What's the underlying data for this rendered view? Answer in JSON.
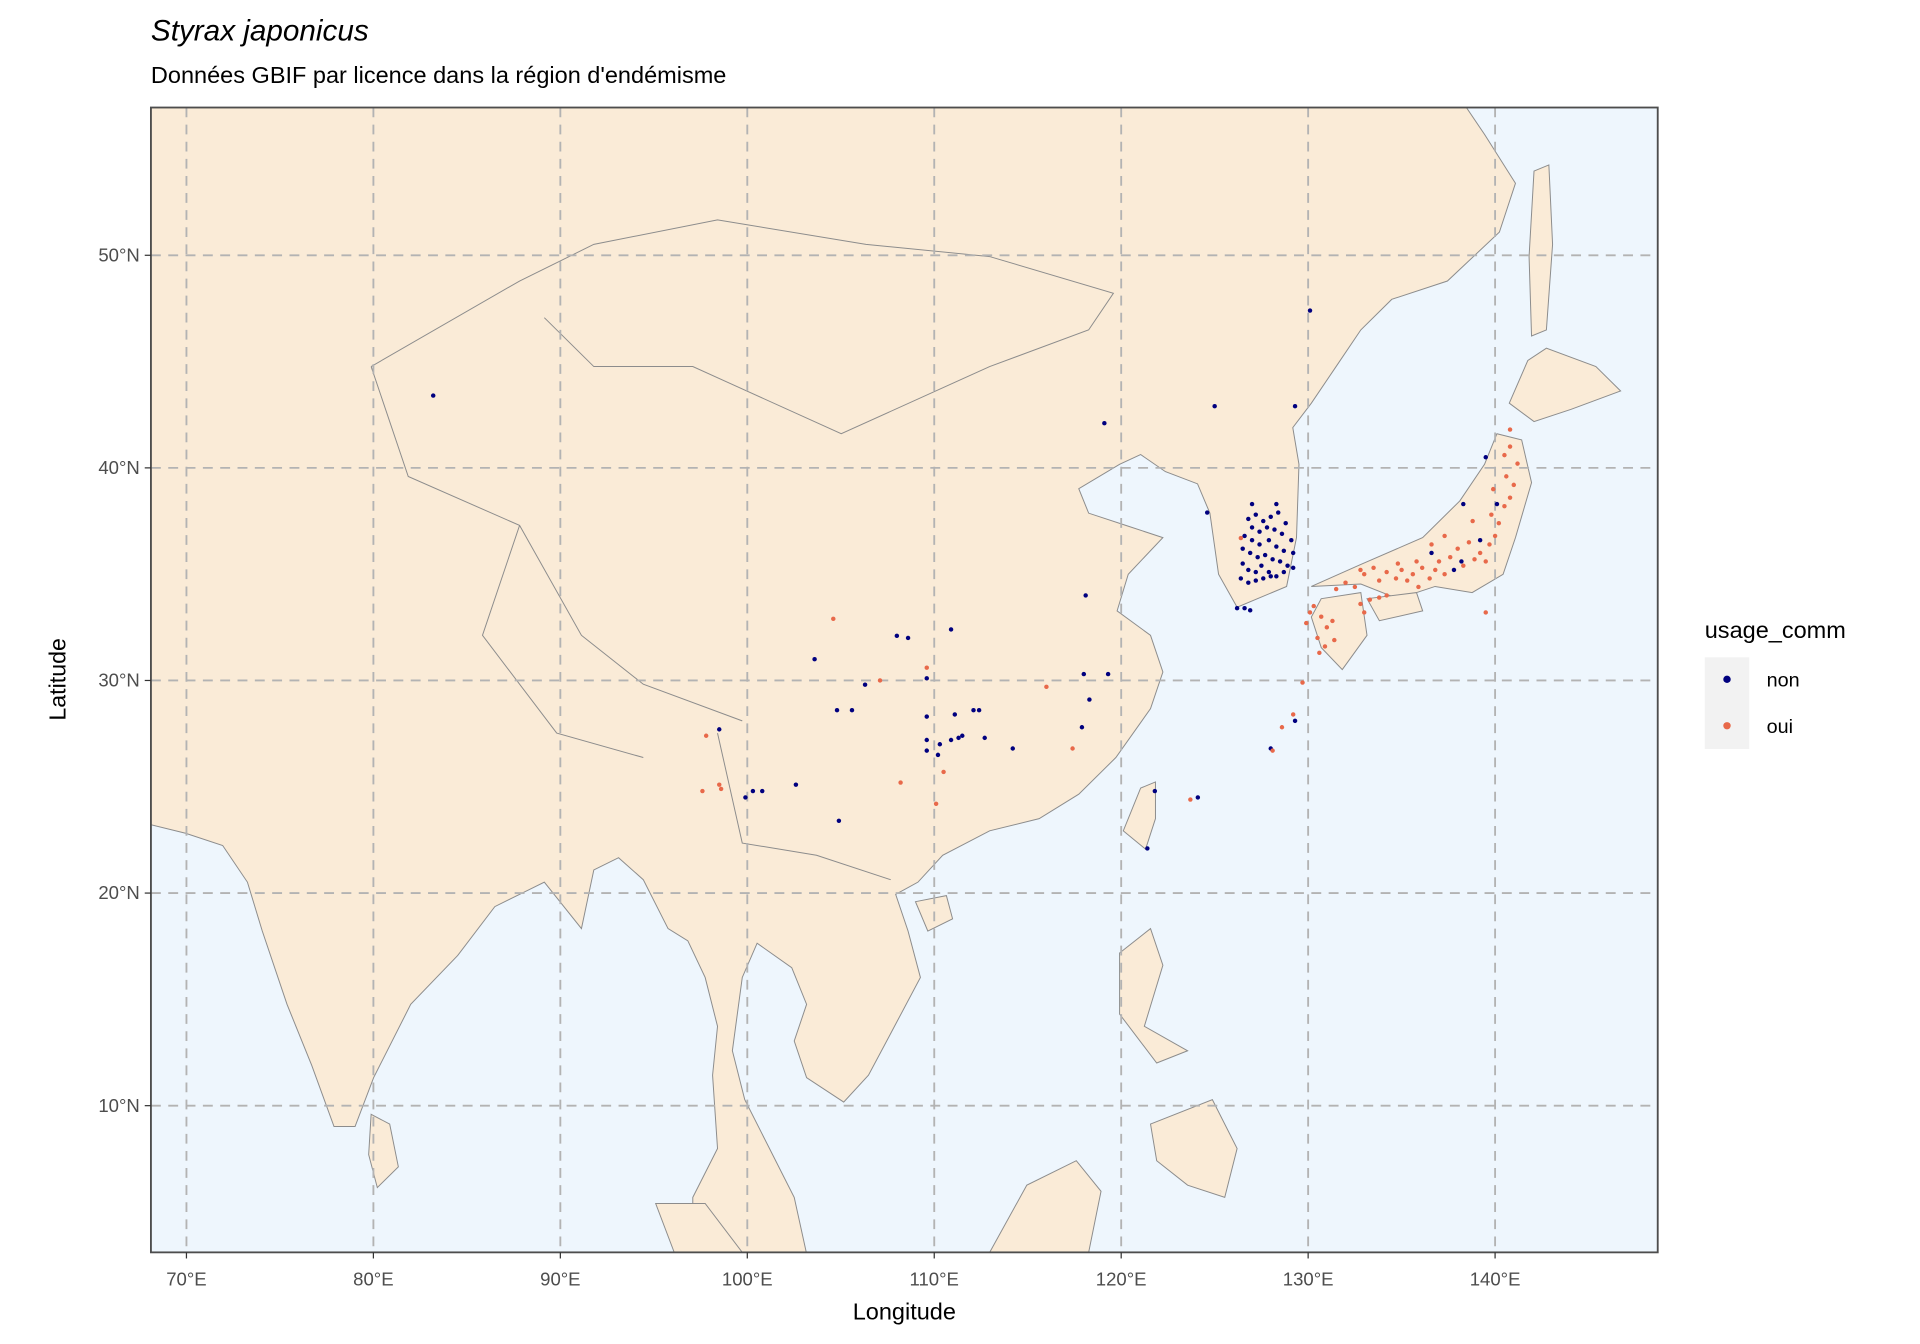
{
  "chart_data": {
    "type": "scatter",
    "title": "Styrax japonicus",
    "subtitle": "Données GBIF par licence dans la région d'endémisme",
    "x_label": "Longitude",
    "y_label": "Latitude",
    "legend_title": "usage_comm",
    "legend_position": "right",
    "grid": true,
    "xlim": [
      68.1,
      148.7
    ],
    "ylim": [
      3.1,
      56.95
    ],
    "xticks": [
      {
        "value": 70,
        "label": "70°E"
      },
      {
        "value": 80,
        "label": "80°E"
      },
      {
        "value": 90,
        "label": "90°E"
      },
      {
        "value": 100,
        "label": "100°E"
      },
      {
        "value": 110,
        "label": "110°E"
      },
      {
        "value": 120,
        "label": "120°E"
      },
      {
        "value": 130,
        "label": "130°E"
      },
      {
        "value": 140,
        "label": "140°E"
      }
    ],
    "yticks": [
      {
        "value": 10,
        "label": "10°N"
      },
      {
        "value": 20,
        "label": "20°N"
      },
      {
        "value": 30,
        "label": "30°N"
      },
      {
        "value": 40,
        "label": "40°N"
      },
      {
        "value": 50,
        "label": "50°N"
      }
    ],
    "series": [
      {
        "name": "non",
        "color": "#00007f",
        "x": [
          83.2,
          130.1,
          119.1,
          125.0,
          129.3,
          118.1,
          103.6,
          108.0,
          108.6,
          110.9,
          109.6,
          106.3,
          104.8,
          105.6,
          118.0,
          119.3,
          118.3,
          117.9,
          109.6,
          111.1,
          112.1,
          112.4,
          109.6,
          110.3,
          110.9,
          111.3,
          111.5,
          112.7,
          114.2,
          109.6,
          110.2,
          98.5,
          99.9,
          100.3,
          100.8,
          102.6,
          104.9,
          121.8,
          124.1,
          121.4,
          129.3,
          128.0,
          138.3,
          140.1,
          139.2,
          137.8,
          138.2,
          136.6,
          139.5,
          124.6,
          126.2,
          126.6,
          126.9,
          127.0,
          128.3,
          126.8,
          127.2,
          127.6,
          128.0,
          128.4,
          128.8,
          127.0,
          127.4,
          127.8,
          128.2,
          128.6,
          129.1,
          126.6,
          127.0,
          127.4,
          127.9,
          128.3,
          128.7,
          129.2,
          126.5,
          126.9,
          127.3,
          127.7,
          128.1,
          128.5,
          128.9,
          129.2,
          126.5,
          126.8,
          127.2,
          127.5,
          127.9,
          128.3,
          128.7,
          126.4,
          126.8,
          127.2,
          127.6,
          128.0
        ],
        "values": [
          43.4,
          47.4,
          42.1,
          42.9,
          42.9,
          34.0,
          31.0,
          32.1,
          32.0,
          32.4,
          30.1,
          29.8,
          28.6,
          28.6,
          30.3,
          30.3,
          29.1,
          27.8,
          28.3,
          28.4,
          28.6,
          28.6,
          27.2,
          27.0,
          27.2,
          27.3,
          27.4,
          27.3,
          26.8,
          26.7,
          26.5,
          27.7,
          24.5,
          24.8,
          24.8,
          25.1,
          23.4,
          24.8,
          24.5,
          22.1,
          28.1,
          26.8,
          38.3,
          38.3,
          36.6,
          35.2,
          35.6,
          36.0,
          40.5,
          37.9,
          33.4,
          33.4,
          33.3,
          38.3,
          38.3,
          37.6,
          37.8,
          37.5,
          37.7,
          37.9,
          37.4,
          37.2,
          37.0,
          37.2,
          37.1,
          36.9,
          36.6,
          36.8,
          36.6,
          36.4,
          36.6,
          36.3,
          36.1,
          36.0,
          36.2,
          36.0,
          35.8,
          35.9,
          35.7,
          35.6,
          35.4,
          35.3,
          35.5,
          35.2,
          35.1,
          35.4,
          35.1,
          34.9,
          35.1,
          34.8,
          34.6,
          34.7,
          34.8,
          34.9
        ]
      },
      {
        "name": "oui",
        "color": "#e8694a",
        "x": [
          129.2,
          128.6,
          128.1,
          123.7,
          129.7,
          104.6,
          107.1,
          109.6,
          108.2,
          110.5,
          110.1,
          117.4,
          116.0,
          97.8,
          97.6,
          98.5,
          98.6,
          126.4,
          139.5,
          140.8,
          131.5,
          132.0,
          132.5,
          133.0,
          133.5,
          133.8,
          134.2,
          134.7,
          135.0,
          135.3,
          135.6,
          135.9,
          136.1,
          136.5,
          136.8,
          137.0,
          137.3,
          137.6,
          138.0,
          138.3,
          138.6,
          138.9,
          139.2,
          139.5,
          139.7,
          140.0,
          140.2,
          139.8,
          140.5,
          140.8,
          141.0,
          140.6,
          141.2,
          140.5,
          140.8,
          139.9,
          138.8,
          137.3,
          136.6,
          132.8,
          134.8,
          135.8,
          132.8,
          133.3,
          133.8,
          134.2,
          133.0,
          130.3,
          130.7,
          131.0,
          130.5,
          130.9,
          131.3,
          130.1,
          129.9,
          130.6,
          131.4
        ],
        "values": [
          28.4,
          27.8,
          26.7,
          24.4,
          29.9,
          32.9,
          30.0,
          30.6,
          25.2,
          25.7,
          24.2,
          26.8,
          29.7,
          27.4,
          24.8,
          25.1,
          24.9,
          36.7,
          33.2,
          41.8,
          34.3,
          34.6,
          34.4,
          35.0,
          35.3,
          34.7,
          35.1,
          34.8,
          35.2,
          34.7,
          35.0,
          34.4,
          35.3,
          34.8,
          35.2,
          35.6,
          35.0,
          35.8,
          36.2,
          35.4,
          36.5,
          35.7,
          36.0,
          35.6,
          36.4,
          36.8,
          37.4,
          37.8,
          38.2,
          38.6,
          39.2,
          39.6,
          40.2,
          40.6,
          41.0,
          39.0,
          37.5,
          36.8,
          36.4,
          35.2,
          35.5,
          35.6,
          33.6,
          33.8,
          33.9,
          34.0,
          33.2,
          33.5,
          33.0,
          32.5,
          32.0,
          31.6,
          32.8,
          33.2,
          32.7,
          31.3,
          31.9
        ]
      }
    ]
  }
}
